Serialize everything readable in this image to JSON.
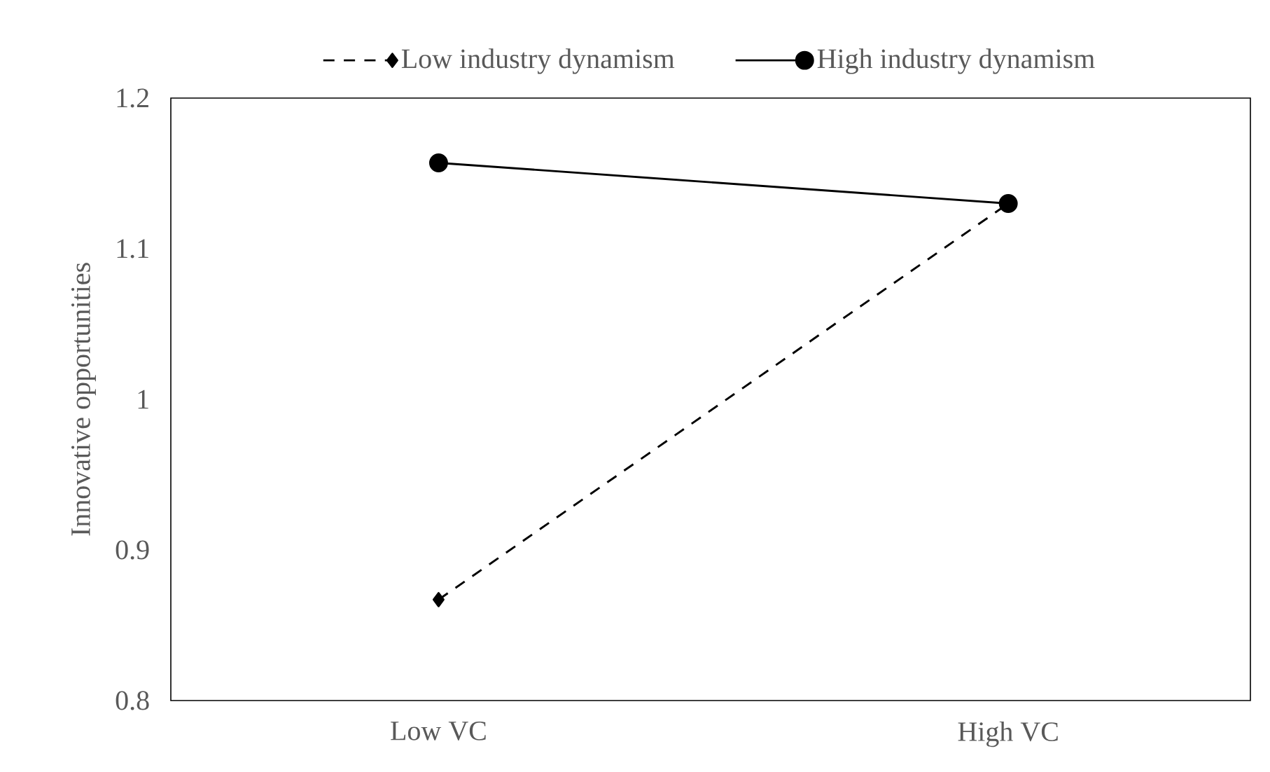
{
  "chart_data": {
    "type": "line",
    "categories": [
      "Low VC",
      "High VC"
    ],
    "ylabel": "Innovative opportunities",
    "ylim": [
      0.8,
      1.2
    ],
    "yticks": [
      0.8,
      0.9,
      1,
      1.1,
      1.2
    ],
    "legend": "top",
    "grid": false,
    "series": [
      {
        "name": "Low industry dynamism",
        "color": "#000000",
        "values": [
          0.867,
          1.13
        ],
        "marker": "diamond",
        "line_style": "dashed"
      },
      {
        "name": "High industry dynamism",
        "color": "#000000",
        "values": [
          1.157,
          1.13
        ],
        "marker": "circle",
        "line_style": "solid"
      }
    ]
  }
}
